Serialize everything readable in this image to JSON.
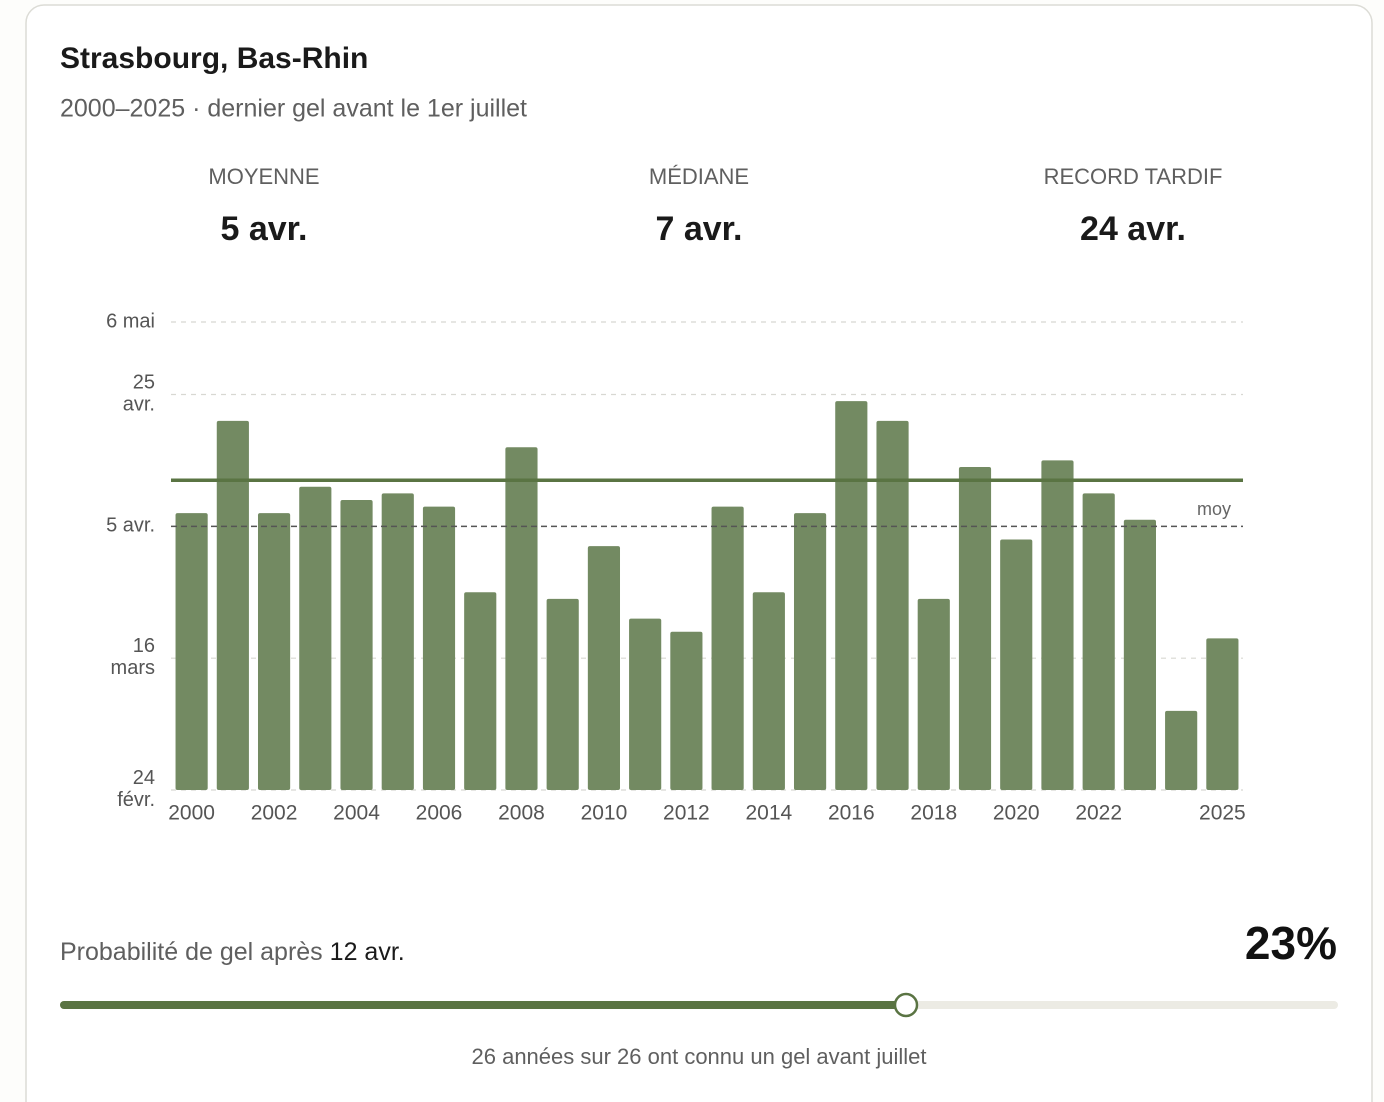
{
  "header": {
    "title": "Strasbourg, Bas-Rhin",
    "subtitle": "2000–2025 · dernier gel avant le 1er juillet"
  },
  "stats": [
    {
      "label": "MOYENNE",
      "value": "5 avr."
    },
    {
      "label": "MÉDIANE",
      "value": "7 avr."
    },
    {
      "label": "RECORD TARDIF",
      "value": "24 avr."
    }
  ],
  "chart_data": {
    "type": "bar",
    "categories": [
      2000,
      null,
      2002,
      null,
      2004,
      null,
      2006,
      null,
      2008,
      null,
      2010,
      null,
      2012,
      null,
      2014,
      null,
      2016,
      null,
      2018,
      null,
      2020,
      null,
      2022,
      null,
      null,
      2025
    ],
    "values": [
      97,
      111,
      97,
      101,
      99,
      100,
      98,
      85,
      107,
      84,
      92,
      81,
      79,
      98,
      85,
      97,
      114,
      111,
      84,
      104,
      93,
      105,
      100,
      96,
      67,
      78
    ],
    "color": "#738a62",
    "ylim": [
      55,
      126
    ],
    "yticks": [
      {
        "value": 55,
        "label": "24 févr."
      },
      {
        "value": 75,
        "label": "16 mars"
      },
      {
        "value": 95,
        "label": "5 avr."
      },
      {
        "value": 115,
        "label": "25 avr."
      },
      {
        "value": 126,
        "label": "6 mai"
      }
    ],
    "grid": true,
    "mean_line": {
      "value": 95,
      "label": "moy"
    },
    "threshold": {
      "value": 102,
      "label": "12 avr.",
      "color": "#5a7443"
    }
  },
  "probability": {
    "label": "Probabilité de gel après",
    "value": 23,
    "value_label": "23%"
  },
  "footnote": "26 années sur 26 ont connu un gel avant juillet"
}
